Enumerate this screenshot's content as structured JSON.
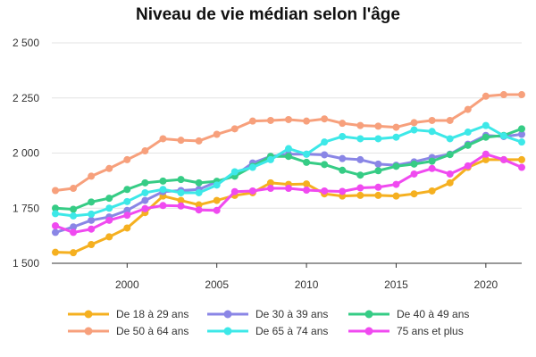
{
  "chart_data": {
    "type": "line",
    "title": "Niveau de vie médian selon l'âge",
    "xlabel": "",
    "ylabel": "",
    "x": [
      1996,
      1997,
      1998,
      1999,
      2000,
      2001,
      2002,
      2003,
      2004,
      2005,
      2006,
      2007,
      2008,
      2009,
      2010,
      2011,
      2012,
      2013,
      2014,
      2015,
      2016,
      2017,
      2018,
      2019,
      2020,
      2021,
      2022
    ],
    "xlim": [
      1996,
      2022
    ],
    "ylim": [
      1500,
      2500
    ],
    "x_ticks": [
      2000,
      2005,
      2010,
      2015,
      2020
    ],
    "x_tick_labels": [
      "2000",
      "2005",
      "2010",
      "2015",
      "2020"
    ],
    "y_ticks": [
      1500,
      1750,
      2000,
      2250,
      2500
    ],
    "y_tick_labels": [
      "1 500",
      "1 750",
      "2 000",
      "2 250",
      "2 500"
    ],
    "grid": "horizontal",
    "legend_position": "bottom",
    "series": [
      {
        "name": "De 18 à 29 ans",
        "color": "#f5b020",
        "values": [
          1550,
          1548,
          1585,
          1620,
          1660,
          1730,
          1805,
          1785,
          1765,
          1785,
          1808,
          1820,
          1865,
          1858,
          1860,
          1815,
          1805,
          1808,
          1808,
          1805,
          1815,
          1828,
          1865,
          1935,
          1970,
          1970,
          1970
        ]
      },
      {
        "name": "De 30 à 39 ans",
        "color": "#8a86e6",
        "values": [
          1640,
          1665,
          1695,
          1710,
          1740,
          1785,
          1825,
          1830,
          1835,
          1870,
          1898,
          1955,
          1985,
          1995,
          1995,
          1992,
          1975,
          1970,
          1950,
          1945,
          1960,
          1980,
          1995,
          2040,
          2080,
          2075,
          2085
        ]
      },
      {
        "name": "De 40 à 49 ans",
        "color": "#36cc85",
        "values": [
          1750,
          1745,
          1778,
          1795,
          1835,
          1865,
          1873,
          1880,
          1865,
          1872,
          1895,
          1940,
          1985,
          1985,
          1958,
          1948,
          1922,
          1900,
          1920,
          1940,
          1950,
          1963,
          1993,
          2035,
          2072,
          2080,
          2110
        ]
      },
      {
        "name": "De 50 à 64 ans",
        "color": "#f7a07c",
        "values": [
          1830,
          1840,
          1895,
          1930,
          1970,
          2010,
          2065,
          2058,
          2055,
          2085,
          2110,
          2145,
          2148,
          2152,
          2145,
          2155,
          2135,
          2125,
          2122,
          2117,
          2138,
          2148,
          2148,
          2198,
          2258,
          2265,
          2265
        ]
      },
      {
        "name": "De 65 à 74 ans",
        "color": "#3de8e8",
        "values": [
          1725,
          1715,
          1723,
          1750,
          1780,
          1820,
          1835,
          1820,
          1820,
          1855,
          1915,
          1935,
          1970,
          2020,
          1995,
          2050,
          2075,
          2065,
          2065,
          2072,
          2105,
          2098,
          2065,
          2095,
          2125,
          2078,
          2050
        ]
      },
      {
        "name": "75 ans et plus",
        "color": "#f04af0",
        "values": [
          1670,
          1640,
          1655,
          1695,
          1718,
          1748,
          1762,
          1760,
          1742,
          1740,
          1825,
          1828,
          1840,
          1840,
          1832,
          1828,
          1826,
          1842,
          1845,
          1858,
          1905,
          1930,
          1905,
          1942,
          1995,
          1970,
          1935
        ]
      }
    ]
  }
}
